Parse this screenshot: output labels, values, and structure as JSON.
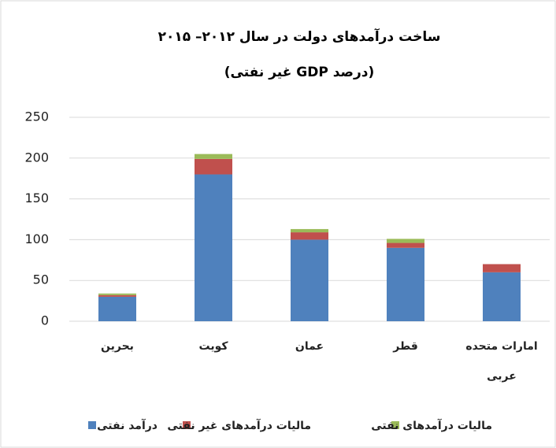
{
  "chart_data": {
    "type": "stacked_bar",
    "title": "ساخت درآمدهای دولت در سال ۲۰۱۲– ۲۰۱۵",
    "subtitle": "(درصد GDP غير نفتی)",
    "categories": [
      "بحرين",
      "کويت",
      "عمان",
      "قطر",
      "امارات متحده عربی"
    ],
    "series": [
      {
        "name": "درآمد نفتی",
        "color": "#4f81bd",
        "values": [
          30,
          180,
          100,
          90,
          60
        ]
      },
      {
        "name": "ماليات درآمدهای غير نفتی",
        "color": "#c0504d",
        "values": [
          2,
          19,
          9,
          6,
          10
        ]
      },
      {
        "name": "ماليات درآمدهای نفتی",
        "color": "#9bbb59",
        "values": [
          2,
          6,
          4,
          5,
          0
        ]
      }
    ],
    "ylim": [
      0,
      250
    ],
    "yticks": [
      0,
      50,
      100,
      150,
      200,
      250
    ],
    "grid": true
  }
}
